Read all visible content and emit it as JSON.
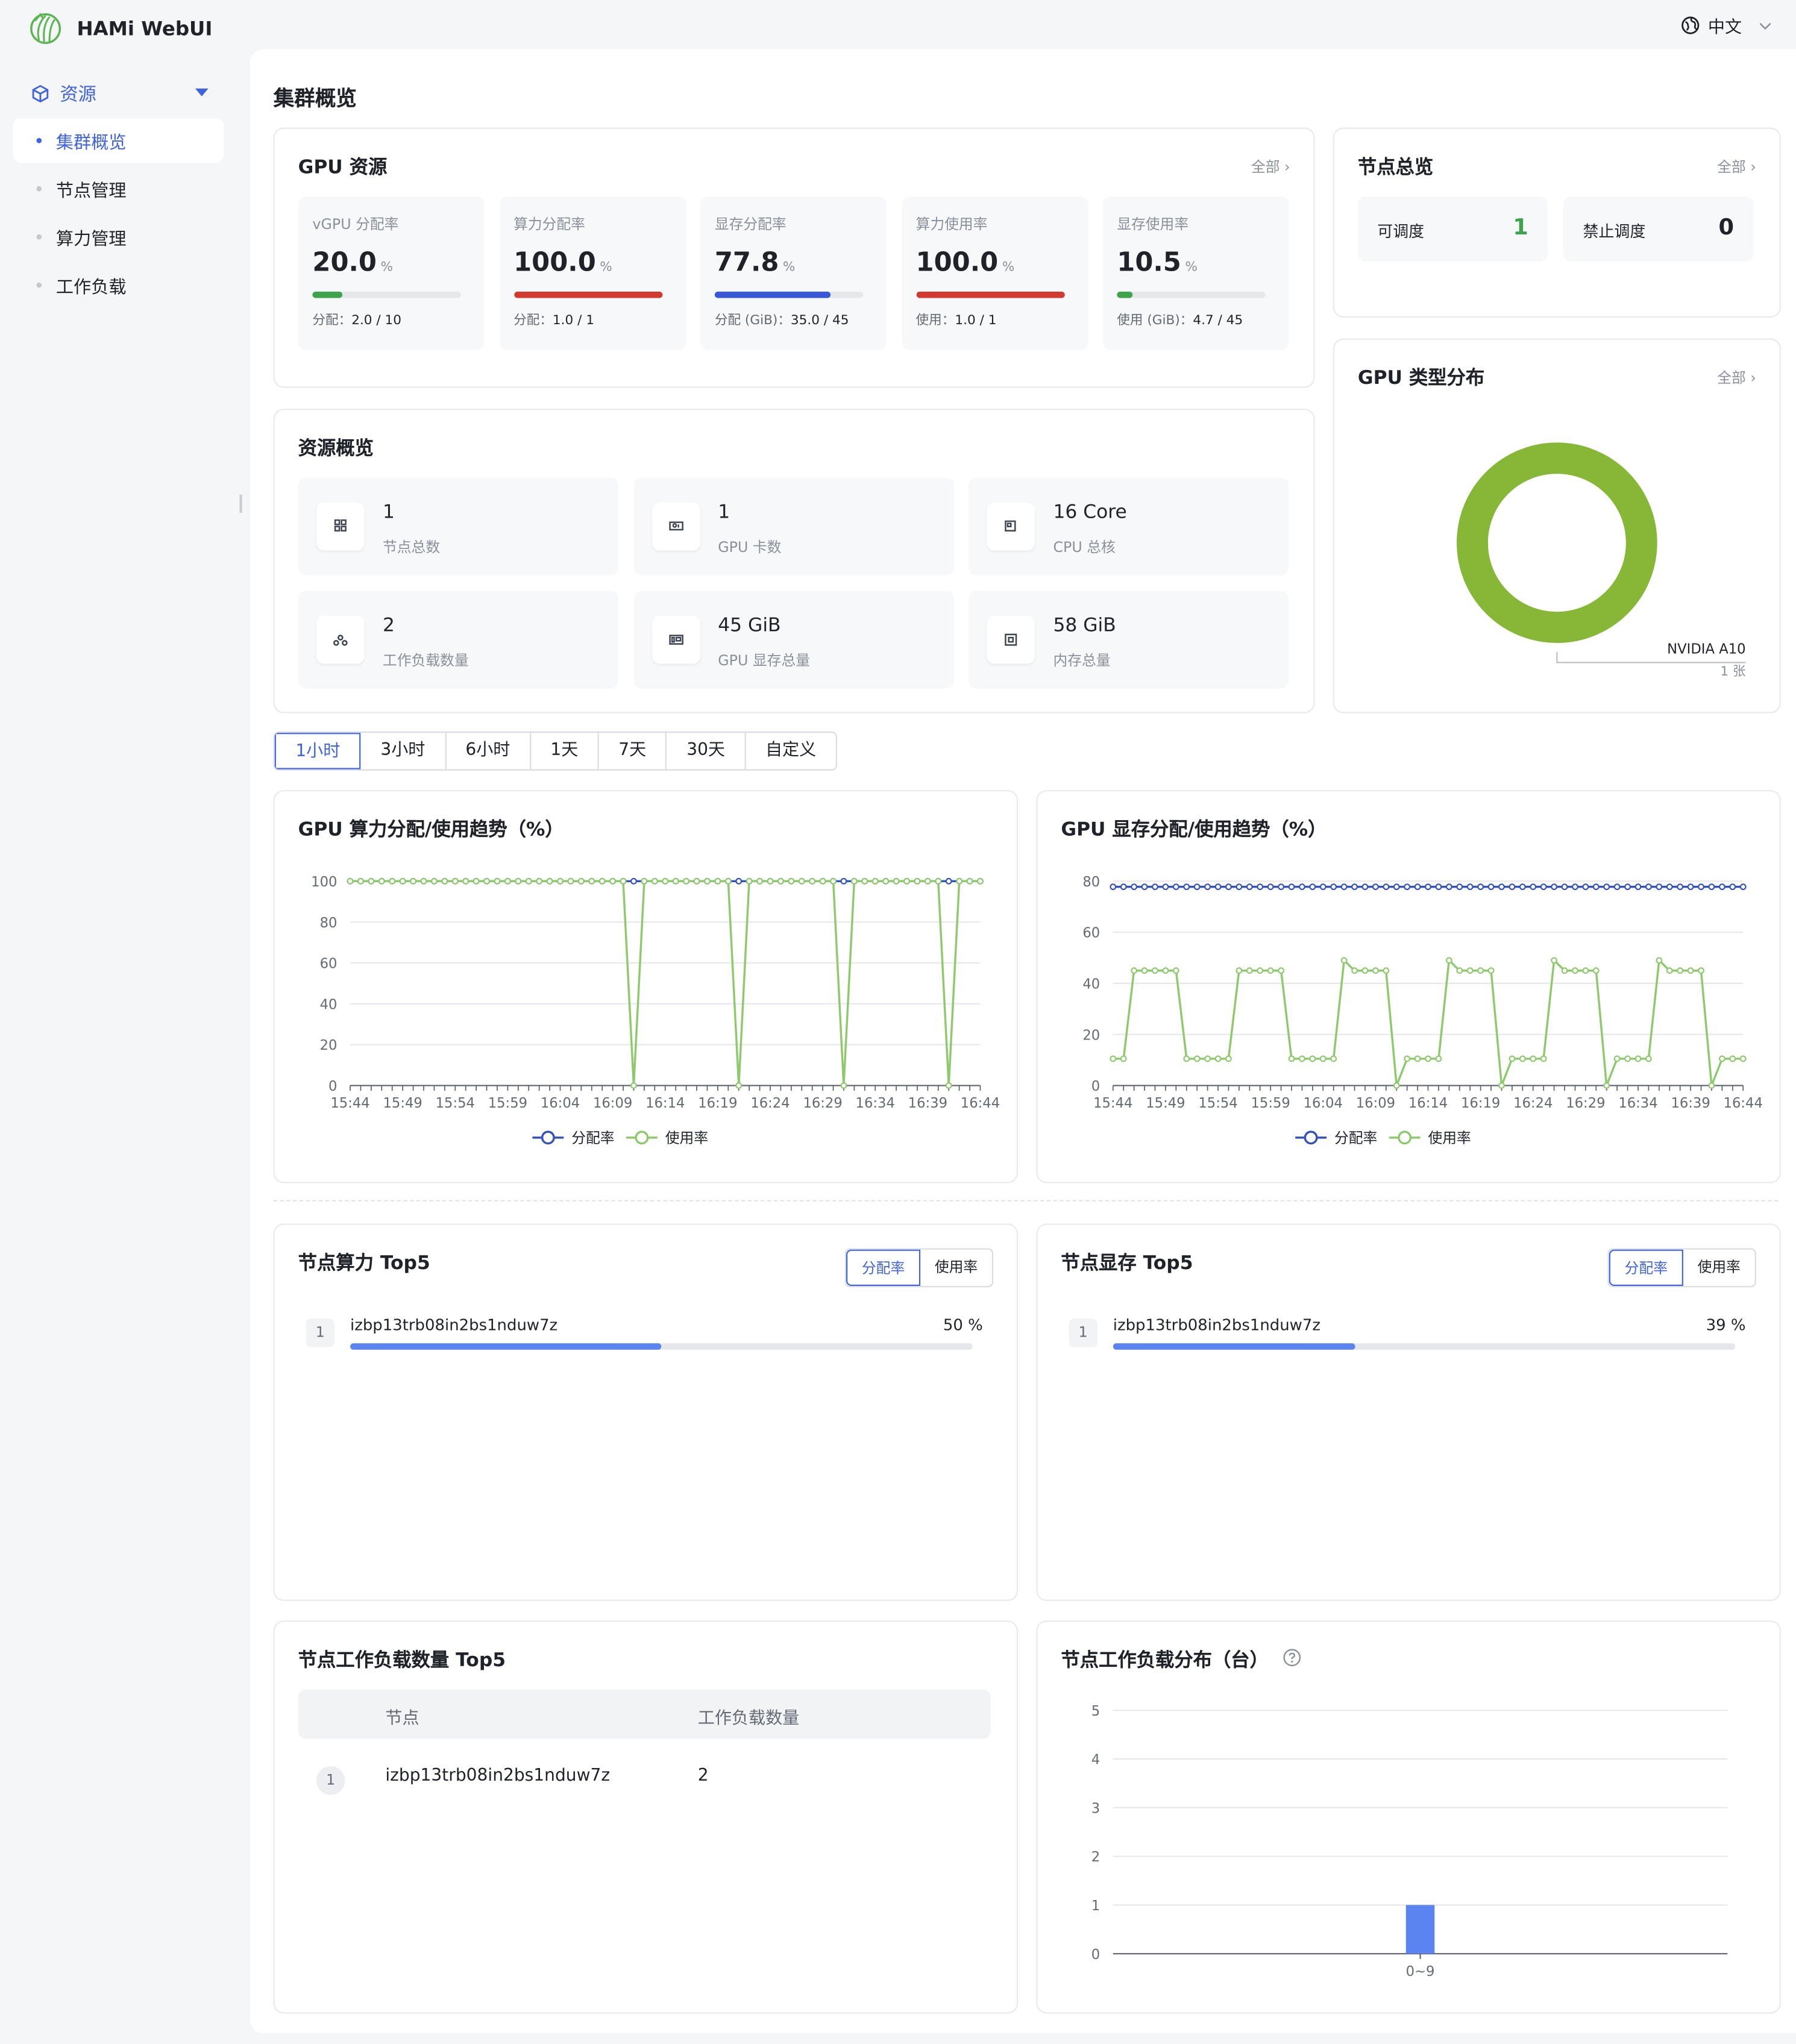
{
  "app": {
    "title": "HAMi WebUI",
    "language": "中文"
  },
  "sidebar": {
    "group_label": "资源",
    "items": [
      {
        "label": "集群概览",
        "active": true
      },
      {
        "label": "节点管理",
        "active": false
      },
      {
        "label": "算力管理",
        "active": false
      },
      {
        "label": "工作负载",
        "active": false
      }
    ]
  },
  "page": {
    "title": "集群概览"
  },
  "gpu_resource": {
    "title": "GPU 资源",
    "more": "全部",
    "tiles": [
      {
        "label": "vGPU 分配率",
        "value": "20.0",
        "unit": "%",
        "percent": 20.0,
        "color": "#3fa34d",
        "sub_label": "分配：",
        "sub_value": "2.0 / 10"
      },
      {
        "label": "算力分配率",
        "value": "100.0",
        "unit": "%",
        "percent": 100.0,
        "color": "#d23a31",
        "sub_label": "分配：",
        "sub_value": "1.0 / 1"
      },
      {
        "label": "显存分配率",
        "value": "77.8",
        "unit": "%",
        "percent": 77.8,
        "color": "#3858d6",
        "sub_label": "分配 (GiB)：",
        "sub_value": "35.0 / 45"
      },
      {
        "label": "算力使用率",
        "value": "100.0",
        "unit": "%",
        "percent": 100.0,
        "color": "#d23a31",
        "sub_label": "使用：",
        "sub_value": "1.0 / 1"
      },
      {
        "label": "显存使用率",
        "value": "10.5",
        "unit": "%",
        "percent": 10.5,
        "color": "#3fa34d",
        "sub_label": "使用 (GiB)：",
        "sub_value": "4.7 / 45"
      }
    ]
  },
  "node_summary": {
    "title": "节点总览",
    "more": "全部",
    "schedulable_label": "可调度",
    "schedulable_value": "1",
    "unschedulable_label": "禁止调度",
    "unschedulable_value": "0",
    "schedulable_color": "#3fa34d"
  },
  "gpu_types": {
    "title": "GPU 类型分布",
    "more": "全部",
    "legend_name": "NVIDIA A10",
    "legend_count": "1 张",
    "color": "#86b737"
  },
  "resource_overview": {
    "title": "资源概览",
    "items": [
      {
        "value": "1",
        "label": "节点总数",
        "icon": "node-icon"
      },
      {
        "value": "1",
        "label": "GPU 卡数",
        "icon": "gpu-card-icon"
      },
      {
        "value": "16 Core",
        "label": "CPU 总核",
        "icon": "cpu-icon"
      },
      {
        "value": "2",
        "label": "工作负载数量",
        "icon": "workload-icon"
      },
      {
        "value": "45 GiB",
        "label": "GPU 显存总量",
        "icon": "gpu-memory-icon"
      },
      {
        "value": "58 GiB",
        "label": "内存总量",
        "icon": "memory-icon"
      }
    ]
  },
  "time_range": {
    "options": [
      "1小时",
      "3小时",
      "6小时",
      "1天",
      "7天",
      "30天",
      "自定义"
    ],
    "selected": "1小时"
  },
  "chart_data": [
    {
      "type": "line",
      "title": "GPU 算力分配/使用趋势（%）",
      "x_ticks": [
        "15:44",
        "15:49",
        "15:54",
        "15:59",
        "16:04",
        "16:09",
        "16:14",
        "16:19",
        "16:24",
        "16:29",
        "16:34",
        "16:39",
        "16:44"
      ],
      "ylim": [
        0,
        100
      ],
      "y_ticks": [
        0,
        20,
        40,
        60,
        80,
        100
      ],
      "legend_position": "bottom-center",
      "series": [
        {
          "name": "分配率",
          "color": "#3552b9",
          "values": [
            100,
            100,
            100,
            100,
            100,
            100,
            100,
            100,
            100,
            100,
            100,
            100,
            100,
            100,
            100,
            100,
            100,
            100,
            100,
            100,
            100,
            100,
            100,
            100,
            100,
            100,
            100,
            100,
            100,
            100,
            100,
            100,
            100,
            100,
            100,
            100,
            100,
            100,
            100,
            100,
            100,
            100,
            100,
            100,
            100,
            100,
            100,
            100,
            100,
            100,
            100,
            100,
            100,
            100,
            100,
            100,
            100,
            100,
            100,
            100,
            100
          ]
        },
        {
          "name": "使用率",
          "color": "#8fc96e",
          "values": [
            100,
            100,
            100,
            100,
            100,
            100,
            100,
            100,
            100,
            100,
            100,
            100,
            100,
            100,
            100,
            100,
            100,
            100,
            100,
            100,
            100,
            100,
            100,
            100,
            100,
            100,
            100,
            0,
            100,
            100,
            100,
            100,
            100,
            100,
            100,
            100,
            100,
            0,
            100,
            100,
            100,
            100,
            100,
            100,
            100,
            100,
            100,
            0,
            100,
            100,
            100,
            100,
            100,
            100,
            100,
            100,
            100,
            0,
            100,
            100,
            100
          ]
        }
      ]
    },
    {
      "type": "line",
      "title": "GPU 显存分配/使用趋势（%）",
      "x_ticks": [
        "15:44",
        "15:49",
        "15:54",
        "15:59",
        "16:04",
        "16:09",
        "16:14",
        "16:19",
        "16:24",
        "16:29",
        "16:34",
        "16:39",
        "16:44"
      ],
      "ylim": [
        0,
        80
      ],
      "y_ticks": [
        0,
        20,
        40,
        60,
        80
      ],
      "legend_position": "bottom-center",
      "series": [
        {
          "name": "分配率",
          "color": "#3552b9",
          "values": [
            77.8,
            77.8,
            77.8,
            77.8,
            77.8,
            77.8,
            77.8,
            77.8,
            77.8,
            77.8,
            77.8,
            77.8,
            77.8,
            77.8,
            77.8,
            77.8,
            77.8,
            77.8,
            77.8,
            77.8,
            77.8,
            77.8,
            77.8,
            77.8,
            77.8,
            77.8,
            77.8,
            77.8,
            77.8,
            77.8,
            77.8,
            77.8,
            77.8,
            77.8,
            77.8,
            77.8,
            77.8,
            77.8,
            77.8,
            77.8,
            77.8,
            77.8,
            77.8,
            77.8,
            77.8,
            77.8,
            77.8,
            77.8,
            77.8,
            77.8,
            77.8,
            77.8,
            77.8,
            77.8,
            77.8,
            77.8,
            77.8,
            77.8,
            77.8,
            77.8,
            77.8
          ]
        },
        {
          "name": "使用率",
          "color": "#8fc96e",
          "values": [
            10.5,
            10.5,
            45,
            45,
            45,
            45,
            45,
            10.5,
            10.5,
            10.5,
            10.5,
            10.5,
            45,
            45,
            45,
            45,
            45,
            10.5,
            10.5,
            10.5,
            10.5,
            10.5,
            49,
            45,
            45,
            45,
            45,
            0,
            10.5,
            10.5,
            10.5,
            10.5,
            49,
            45,
            45,
            45,
            45,
            0,
            10.5,
            10.5,
            10.5,
            10.5,
            49,
            45,
            45,
            45,
            45,
            0,
            10.5,
            10.5,
            10.5,
            10.5,
            49,
            45,
            45,
            45,
            45,
            0,
            10.5,
            10.5,
            10.5
          ]
        }
      ]
    },
    {
      "type": "bar",
      "title": "节点工作负载分布（台）",
      "categories": [
        "0~9"
      ],
      "values": [
        1
      ],
      "ylim": [
        0,
        5
      ],
      "y_ticks": [
        0,
        1,
        2,
        3,
        4,
        5
      ],
      "color": "#5b84f0"
    }
  ],
  "legend": {
    "alloc": "分配率",
    "usage": "使用率"
  },
  "node_compute_top5": {
    "title": "节点算力 Top5",
    "toggle": [
      "分配率",
      "使用率"
    ],
    "rows": [
      {
        "rank": "1",
        "name": "izbp13trb08in2bs1nduw7z",
        "value": "50 %",
        "percent": 50
      }
    ]
  },
  "node_memory_top5": {
    "title": "节点显存 Top5",
    "toggle": [
      "分配率",
      "使用率"
    ],
    "rows": [
      {
        "rank": "1",
        "name": "izbp13trb08in2bs1nduw7z",
        "value": "39 %",
        "percent": 39
      }
    ]
  },
  "node_workload_top5": {
    "title": "节点工作负载数量 Top5",
    "columns": [
      "节点",
      "工作负载数量"
    ],
    "rows": [
      {
        "rank": "1",
        "node": "izbp13trb08in2bs1nduw7z",
        "count": "2"
      }
    ]
  },
  "workload_distribution": {
    "title": "节点工作负载分布（台）"
  }
}
